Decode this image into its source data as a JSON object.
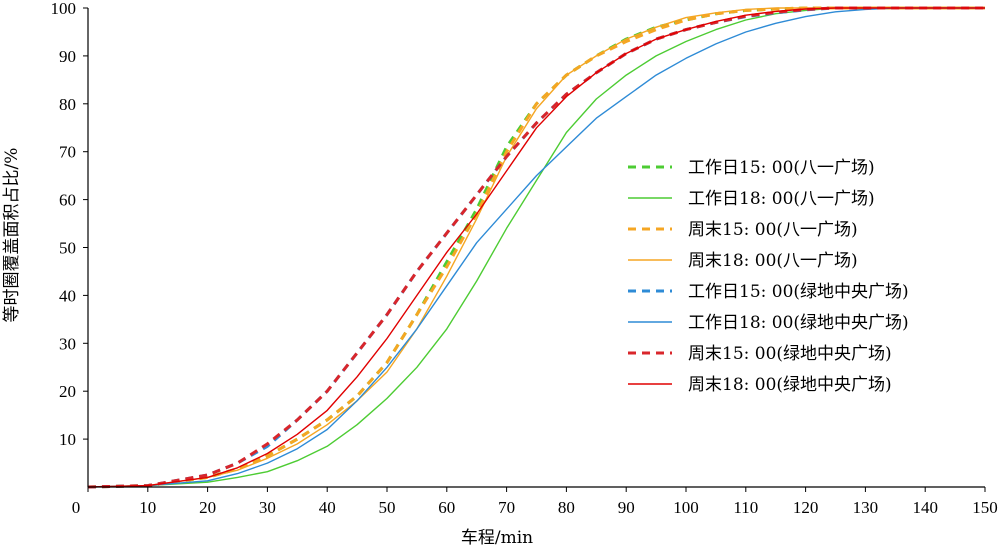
{
  "chart_data": {
    "type": "line",
    "title": "",
    "xlabel": "车程/min",
    "ylabel": "等时圈覆盖面积占比/%",
    "xlim": [
      0,
      150
    ],
    "ylim": [
      0,
      100
    ],
    "x_ticks": [
      0,
      10,
      20,
      30,
      40,
      50,
      60,
      70,
      80,
      90,
      100,
      110,
      120,
      130,
      140,
      150
    ],
    "y_ticks": [
      10,
      20,
      30,
      40,
      50,
      60,
      70,
      80,
      90,
      100
    ],
    "grid": false,
    "legend_position": "right",
    "x": [
      0,
      10,
      20,
      25,
      30,
      35,
      40,
      45,
      50,
      55,
      60,
      65,
      70,
      75,
      80,
      85,
      90,
      95,
      100,
      105,
      110,
      115,
      120,
      125,
      130,
      135,
      140,
      150
    ],
    "series": [
      {
        "name": "工作日15: 00(八一广场)",
        "color": "#4dcc33",
        "dash": "dashed",
        "values": [
          0,
          0.3,
          2.0,
          3.8,
          6.5,
          10,
          14,
          19,
          26,
          36,
          47,
          58,
          71,
          80,
          86,
          90,
          93.5,
          96,
          97.5,
          98.8,
          99.5,
          99.8,
          100,
          100,
          100,
          100,
          100,
          100
        ]
      },
      {
        "name": "工作日18: 00(八一广场)",
        "color": "#4dcc33",
        "dash": "solid",
        "values": [
          0,
          0.3,
          1.0,
          2.0,
          3.2,
          5.5,
          8.5,
          13,
          18.5,
          25,
          33,
          43,
          54,
          64,
          74,
          81,
          86,
          90,
          93,
          95.5,
          97.5,
          98.8,
          99.5,
          100,
          100,
          100,
          100,
          100
        ]
      },
      {
        "name": "周末15: 00(八一广场)",
        "color": "#f5a623",
        "dash": "dashed",
        "values": [
          0,
          0.3,
          2.0,
          3.8,
          6.5,
          10,
          14,
          19,
          26,
          36,
          46,
          57,
          70,
          80,
          86,
          90,
          93,
          95.5,
          97.5,
          98.8,
          99.5,
          99.8,
          100,
          100,
          100,
          100,
          100,
          100
        ]
      },
      {
        "name": "周末18: 00(八一广场)",
        "color": "#f5a623",
        "dash": "solid",
        "values": [
          0,
          0.3,
          2.0,
          3.5,
          6.0,
          9.0,
          13,
          18,
          24,
          33,
          44,
          56,
          69,
          79,
          86,
          90,
          93.5,
          96,
          98,
          99,
          99.7,
          100,
          100,
          100,
          100,
          100,
          100,
          100
        ]
      },
      {
        "name": "工作日15: 00(绿地中央广场)",
        "color": "#2e8bd6",
        "dash": "dashed",
        "values": [
          0,
          0.3,
          2.5,
          5.0,
          8.5,
          14,
          20,
          28,
          36,
          45,
          53,
          61,
          69,
          76,
          82,
          86.5,
          90.5,
          93.5,
          95.5,
          97,
          98.2,
          99,
          99.6,
          100,
          100,
          100,
          100,
          100
        ]
      },
      {
        "name": "工作日18: 00(绿地中央广场)",
        "color": "#2e8bd6",
        "dash": "solid",
        "values": [
          0,
          0.3,
          1.3,
          2.8,
          5.0,
          8.0,
          12,
          18,
          25,
          33,
          42,
          51,
          58,
          65,
          71,
          77,
          81.5,
          86,
          89.5,
          92.5,
          95,
          96.8,
          98.2,
          99.2,
          99.7,
          100,
          100,
          100
        ]
      },
      {
        "name": "周末15: 00(绿地中央广场)",
        "color": "#d9262b",
        "dash": "dashed",
        "values": [
          0,
          0.3,
          2.5,
          5.0,
          9.0,
          14,
          20,
          28,
          36,
          45,
          53,
          61,
          69,
          76,
          82,
          86.5,
          90.5,
          93.5,
          95.5,
          97,
          98.3,
          99.1,
          99.7,
          100,
          100,
          100,
          100,
          100
        ]
      },
      {
        "name": "周末18: 00(绿地中央广场)",
        "color": "#e00000",
        "dash": "solid",
        "values": [
          0,
          0.3,
          2.0,
          4.0,
          7.0,
          11,
          16,
          23,
          31,
          40,
          49,
          57,
          66,
          75,
          81.5,
          86.5,
          90.5,
          93.5,
          95.5,
          97.2,
          98.5,
          99.3,
          99.8,
          100,
          100,
          100,
          100,
          100
        ]
      }
    ]
  }
}
